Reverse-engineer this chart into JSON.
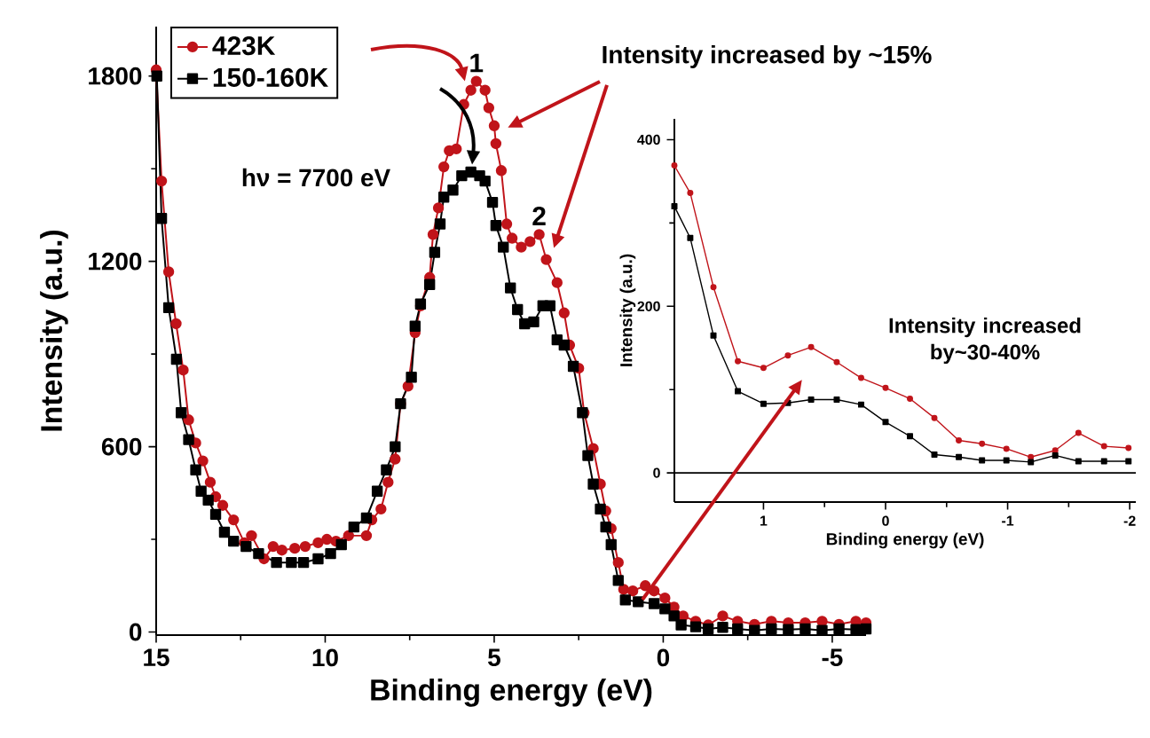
{
  "chart_data": [
    {
      "type": "line",
      "xlabel": "Binding energy (eV)",
      "ylabel": "Intensity (a.u.)",
      "xlim": [
        15,
        -6
      ],
      "ylim": [
        -10,
        1960
      ],
      "xticks": [
        15,
        10,
        5,
        0,
        -5
      ],
      "yticks": [
        0,
        600,
        1200,
        1800
      ],
      "legend": "top left",
      "annotations": [
        {
          "text": "1",
          "x": 5.53,
          "y": 1783
        },
        {
          "text": "2",
          "x": 3.67,
          "y": 1287
        },
        "Intensity increased by ~15%",
        "hν = 7700 eV"
      ],
      "series": [
        {
          "name": "423K",
          "color": "#c0141a",
          "marker": "circle",
          "x": [
            15.0,
            14.84,
            14.63,
            14.41,
            14.2,
            14.04,
            13.83,
            13.62,
            13.4,
            13.24,
            13.03,
            12.71,
            12.39,
            12.18,
            11.81,
            11.54,
            11.28,
            10.9,
            10.59,
            10.21,
            9.95,
            9.68,
            9.31,
            8.78,
            8.62,
            8.35,
            8.14,
            7.93,
            7.77,
            7.55,
            7.34,
            7.18,
            6.91,
            6.81,
            6.65,
            6.49,
            6.33,
            6.12,
            5.9,
            5.69,
            5.53,
            5.27,
            5.16,
            5.0,
            4.95,
            4.79,
            4.63,
            4.47,
            4.2,
            3.94,
            3.67,
            3.46,
            3.14,
            2.93,
            2.77,
            2.5,
            2.34,
            2.07,
            1.86,
            1.7,
            1.54,
            1.33,
            1.17,
            0.9,
            0.53,
            0.27,
            -0.05,
            -0.32,
            -0.59,
            -0.96,
            -1.33,
            -1.76,
            -2.2,
            -2.7,
            -3.2,
            -3.7,
            -4.2,
            -4.7,
            -5.2,
            -5.7,
            -6.0
          ],
          "values": [
            1820,
            1460,
            1166,
            998,
            848,
            687,
            612,
            554,
            485,
            438,
            410,
            363,
            289,
            312,
            237,
            277,
            265,
            271,
            277,
            289,
            300,
            294,
            312,
            312,
            363,
            398,
            485,
            560,
            739,
            796,
            969,
            1056,
            1148,
            1287,
            1373,
            1506,
            1558,
            1564,
            1708,
            1754,
            1783,
            1754,
            1697,
            1639,
            1581,
            1494,
            1321,
            1275,
            1246,
            1264,
            1287,
            1206,
            1131,
            1033,
            929,
            854,
            710,
            594,
            479,
            392,
            335,
            225,
            138,
            133,
            150,
            133,
            110,
            81,
            52,
            35,
            23,
            52,
            35,
            25,
            35,
            30,
            30,
            35,
            25,
            35,
            30
          ]
        },
        {
          "name": "150-160K",
          "color": "#000000",
          "marker": "square",
          "x": [
            14.98,
            14.84,
            14.63,
            14.4,
            14.26,
            14.04,
            13.83,
            13.67,
            13.46,
            13.24,
            12.98,
            12.71,
            12.34,
            11.97,
            11.44,
            11.0,
            10.64,
            10.21,
            9.84,
            9.52,
            9.15,
            8.78,
            8.46,
            8.19,
            7.93,
            7.77,
            7.45,
            7.34,
            7.18,
            6.91,
            6.76,
            6.6,
            6.49,
            6.22,
            5.96,
            5.69,
            5.43,
            5.27,
            5.05,
            4.95,
            4.73,
            4.52,
            4.31,
            4.1,
            3.83,
            3.56,
            3.35,
            3.14,
            2.93,
            2.66,
            2.39,
            2.23,
            2.07,
            1.86,
            1.7,
            1.54,
            1.33,
            1.12,
            0.74,
            0.27,
            -0.05,
            -0.32,
            -0.53,
            -0.96,
            -1.33,
            -1.76,
            -2.2,
            -2.7,
            -3.2,
            -3.7,
            -4.2,
            -4.7,
            -5.2,
            -5.7,
            -6.0
          ],
          "values": [
            1800,
            1339,
            1050,
            883,
            710,
            623,
            525,
            456,
            427,
            381,
            323,
            294,
            277,
            254,
            225,
            225,
            225,
            237,
            254,
            283,
            340,
            369,
            456,
            525,
            600,
            739,
            825,
            990,
            1062,
            1125,
            1229,
            1321,
            1408,
            1431,
            1477,
            1489,
            1477,
            1460,
            1391,
            1316,
            1246,
            1114,
            1044,
            998,
            1004,
            1056,
            1056,
            946,
            929,
            860,
            710,
            571,
            479,
            398,
            340,
            283,
            167,
            104,
            98,
            92,
            75,
            52,
            23,
            17,
            10,
            15,
            10,
            5,
            10,
            8,
            10,
            5,
            10,
            8,
            10
          ]
        }
      ]
    },
    {
      "type": "line",
      "xlabel": "Binding energy (eV)",
      "ylabel": "Intensity (a.u.)",
      "xlim": [
        1.73,
        -2.05
      ],
      "ylim": [
        -35,
        425
      ],
      "xticks": [
        1,
        0,
        -1,
        -2
      ],
      "yticks": [
        0,
        200,
        400
      ],
      "annotations": [
        "Intensity increased by~30-40%"
      ],
      "ref_lines": [
        {
          "axis": "y",
          "value": 0,
          "color": "#000000"
        }
      ],
      "series": [
        {
          "color": "#c0141a",
          "marker": "circle",
          "x": [
            1.73,
            1.6,
            1.41,
            1.21,
            1.0,
            0.8,
            0.61,
            0.4,
            0.2,
            0.0,
            -0.2,
            -0.4,
            -0.6,
            -0.79,
            -0.99,
            -1.19,
            -1.39,
            -1.58,
            -1.79,
            -1.99
          ],
          "values": [
            369,
            336,
            223,
            134,
            126,
            141,
            151,
            133,
            114,
            102,
            89,
            66,
            39,
            35,
            29,
            19,
            27,
            48,
            32,
            30
          ]
        },
        {
          "color": "#000000",
          "marker": "square",
          "x": [
            1.73,
            1.6,
            1.41,
            1.21,
            1.0,
            0.8,
            0.61,
            0.4,
            0.2,
            0.0,
            -0.2,
            -0.4,
            -0.6,
            -0.79,
            -0.99,
            -1.19,
            -1.39,
            -1.58,
            -1.79,
            -1.99
          ],
          "values": [
            320,
            282,
            165,
            98,
            83,
            84,
            88,
            88,
            82,
            61,
            44,
            22,
            19,
            15,
            15,
            13,
            21,
            14,
            14,
            14
          ]
        }
      ]
    }
  ]
}
